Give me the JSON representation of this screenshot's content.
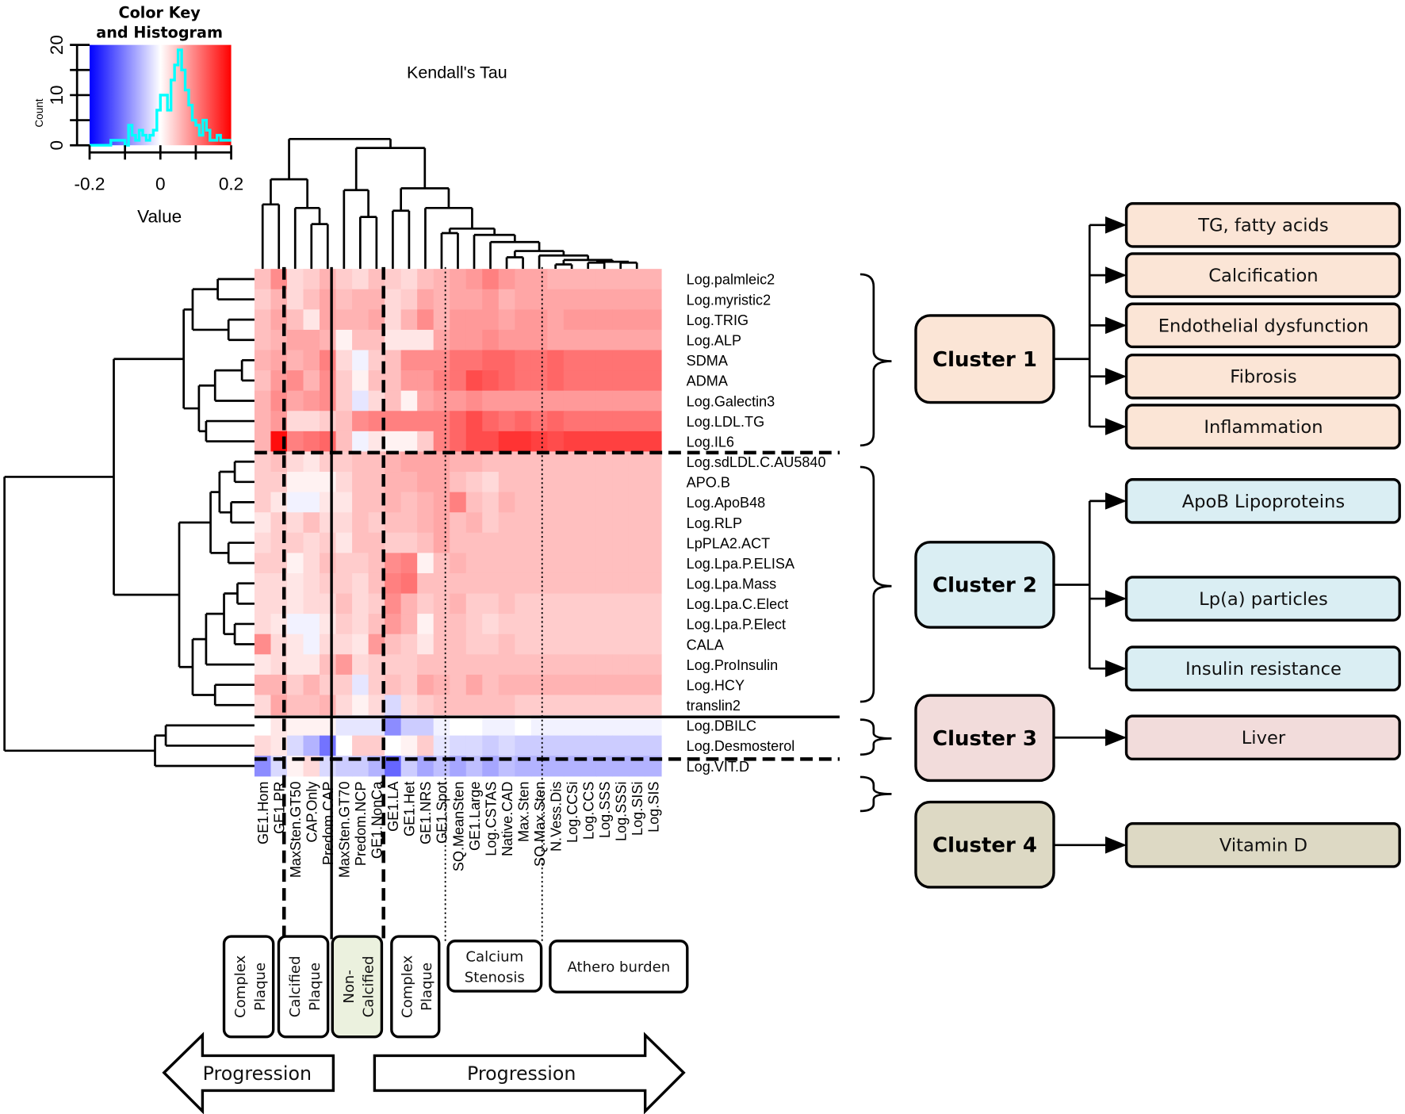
{
  "chart_data": {
    "type": "heatmap",
    "title": "Kendall's Tau",
    "color_scale": {
      "min": -0.2,
      "max": 0.2,
      "low_color": "#0000ff",
      "mid_color": "#ffffff",
      "high_color": "#ff0000"
    },
    "color_key": {
      "title_line1": "Color Key",
      "title_line2": "and Histogram",
      "xlabel": "Value",
      "ylabel": "Count",
      "x_ticks": [
        "-0.2",
        "0",
        "0.2"
      ],
      "y_ticks": [
        "0",
        "10",
        "20"
      ],
      "histogram_color": "#00ffff",
      "histogram_bin_start": -0.2,
      "histogram_bin_width": 0.01,
      "histogram_counts": [
        0,
        0,
        0,
        0,
        0,
        0,
        1,
        1,
        1,
        1,
        0,
        4,
        2,
        1,
        3,
        2,
        1,
        2,
        3,
        7,
        10,
        10,
        7,
        13,
        16,
        19,
        15,
        11,
        8,
        5,
        4,
        2,
        5,
        3,
        1,
        1,
        2,
        1,
        1,
        1
      ]
    },
    "columns": [
      "GE1.Hom",
      "GE1.PR",
      "MaxSten.GT50",
      "CAP.Only",
      "Predom.CAP",
      "MaxSten.GT70",
      "Predom.NCP",
      "GE1.NonCa",
      "GE1.LA",
      "GE1.Het",
      "GE1.NRS",
      "GE1.Spot",
      "SQ.MeanSten",
      "GE1.Large",
      "Log.CSTAS",
      "Native.CAD",
      "Max.Sten",
      "SQ.Max.Sten",
      "N.Vess.Dis",
      "Log.CCSi",
      "Log.CCS",
      "Log.SSS",
      "Log.SSSi",
      "Log.SISi",
      "Log.SIS"
    ],
    "rows": [
      "Log.palmleic2",
      "Log.myristic2",
      "Log.TRIG",
      "Log.ALP",
      "SDMA",
      "ADMA",
      "Log.Galectin3",
      "Log.LDL.TG",
      "Log.IL6",
      "Log.sdLDL.C.AU5840",
      "APO.B",
      "Log.ApoB48",
      "Log.RLP",
      "LpPLA2.ACT",
      "Log.Lpa.P.ELISA",
      "Log.Lpa.Mass",
      "Log.Lpa.C.Elect",
      "Log.Lpa.P.Elect",
      "CALA",
      "Log.ProInsulin",
      "Log.HCY",
      "translin2",
      "Log.DBILC",
      "Log.Desmosterol",
      "Log.VIT.D"
    ],
    "values": [
      [
        0.05,
        0.09,
        0.03,
        0.04,
        0.06,
        0.04,
        0.03,
        0.05,
        0.04,
        0.03,
        0.05,
        0.06,
        0.07,
        0.08,
        0.1,
        0.08,
        0.07,
        0.07,
        0.06,
        0.06,
        0.06,
        0.06,
        0.06,
        0.06,
        0.06
      ],
      [
        0.04,
        0.06,
        0.03,
        0.05,
        0.07,
        0.05,
        0.06,
        0.06,
        0.03,
        0.04,
        0.07,
        0.06,
        0.07,
        0.07,
        0.08,
        0.06,
        0.07,
        0.07,
        0.07,
        0.07,
        0.07,
        0.07,
        0.07,
        0.07,
        0.07
      ],
      [
        0.05,
        0.07,
        0.05,
        0.02,
        0.07,
        0.06,
        0.06,
        0.07,
        0.03,
        0.06,
        0.09,
        0.06,
        0.08,
        0.08,
        0.08,
        0.07,
        0.08,
        0.08,
        0.07,
        0.08,
        0.08,
        0.08,
        0.08,
        0.08,
        0.08
      ],
      [
        0.05,
        0.06,
        0.07,
        0.07,
        0.06,
        0.01,
        0.05,
        0.05,
        0.02,
        0.02,
        0.02,
        0.07,
        0.08,
        0.08,
        0.09,
        0.08,
        0.08,
        0.08,
        0.07,
        0.07,
        0.07,
        0.07,
        0.07,
        0.07,
        0.07
      ],
      [
        0.06,
        0.07,
        0.06,
        0.07,
        0.1,
        0.03,
        -0.01,
        0.04,
        0.05,
        0.09,
        0.09,
        0.09,
        0.11,
        0.11,
        0.12,
        0.12,
        0.11,
        0.11,
        0.12,
        0.11,
        0.11,
        0.11,
        0.11,
        0.11,
        0.11
      ],
      [
        0.05,
        0.08,
        0.09,
        0.06,
        0.09,
        0.04,
        0.01,
        0.05,
        0.05,
        0.08,
        0.08,
        0.1,
        0.11,
        0.14,
        0.13,
        0.12,
        0.11,
        0.11,
        0.12,
        0.11,
        0.11,
        0.11,
        0.11,
        0.11,
        0.11
      ],
      [
        0.06,
        0.09,
        0.07,
        0.08,
        0.09,
        0.04,
        -0.02,
        0.03,
        0.05,
        0.01,
        0.07,
        0.08,
        0.08,
        0.09,
        0.08,
        0.08,
        0.08,
        0.08,
        0.08,
        0.08,
        0.08,
        0.08,
        0.08,
        0.08,
        0.08
      ],
      [
        0.06,
        0.08,
        0.03,
        0.03,
        0.04,
        0.05,
        0.09,
        0.1,
        0.1,
        0.1,
        0.1,
        0.1,
        0.12,
        0.14,
        0.12,
        0.11,
        0.12,
        0.11,
        0.12,
        0.11,
        0.11,
        0.11,
        0.11,
        0.11,
        0.11
      ],
      [
        0.06,
        0.19,
        0.1,
        0.11,
        0.12,
        0.05,
        -0.01,
        0.02,
        0.01,
        0.01,
        0.04,
        0.1,
        0.12,
        0.14,
        0.14,
        0.16,
        0.16,
        0.15,
        0.14,
        0.15,
        0.15,
        0.15,
        0.15,
        0.15,
        0.15
      ],
      [
        0.04,
        0.05,
        0.03,
        0.02,
        0.04,
        0.04,
        0.05,
        0.05,
        0.06,
        0.07,
        0.07,
        0.07,
        0.06,
        0.06,
        0.05,
        0.05,
        0.05,
        0.05,
        0.05,
        0.05,
        0.05,
        0.05,
        0.05,
        0.05,
        0.05
      ],
      [
        0.04,
        0.04,
        0.01,
        0.01,
        0.01,
        0.03,
        0.05,
        0.05,
        0.06,
        0.06,
        0.07,
        0.07,
        0.05,
        0.04,
        0.03,
        0.05,
        0.05,
        0.05,
        0.05,
        0.05,
        0.05,
        0.05,
        0.05,
        0.05,
        0.05
      ],
      [
        0.04,
        0.02,
        -0.01,
        -0.01,
        0.02,
        0.02,
        0.05,
        0.05,
        0.06,
        0.05,
        0.06,
        0.07,
        0.1,
        0.05,
        0.04,
        0.06,
        0.05,
        0.05,
        0.05,
        0.05,
        0.05,
        0.05,
        0.05,
        0.05,
        0.05
      ],
      [
        0.02,
        0.04,
        0.03,
        0.05,
        0.03,
        0.03,
        0.05,
        0.04,
        0.05,
        0.05,
        0.06,
        0.07,
        0.05,
        0.06,
        0.04,
        0.05,
        0.05,
        0.05,
        0.05,
        0.05,
        0.05,
        0.05,
        0.05,
        0.05,
        0.05
      ],
      [
        0.03,
        0.04,
        0.04,
        0.03,
        0.04,
        0.02,
        0.05,
        0.05,
        0.04,
        0.04,
        0.05,
        0.07,
        0.05,
        0.05,
        0.05,
        0.05,
        0.05,
        0.05,
        0.05,
        0.05,
        0.05,
        0.05,
        0.05,
        0.05,
        0.05
      ],
      [
        0.04,
        0.04,
        0.01,
        0.03,
        0.05,
        0.04,
        0.04,
        0.05,
        0.09,
        0.1,
        0.01,
        0.05,
        0.06,
        0.05,
        0.05,
        0.05,
        0.05,
        0.05,
        0.05,
        0.05,
        0.05,
        0.05,
        0.05,
        0.05,
        0.05
      ],
      [
        0.03,
        0.03,
        0.02,
        0.03,
        0.04,
        0.04,
        0.03,
        0.05,
        0.1,
        0.11,
        0.05,
        0.05,
        0.05,
        0.05,
        0.05,
        0.05,
        0.05,
        0.05,
        0.05,
        0.05,
        0.05,
        0.05,
        0.05,
        0.05,
        0.05
      ],
      [
        0.03,
        0.03,
        0.02,
        0.03,
        0.03,
        0.05,
        0.03,
        0.04,
        0.09,
        0.06,
        0.04,
        0.05,
        0.06,
        0.04,
        0.04,
        0.05,
        0.04,
        0.04,
        0.04,
        0.04,
        0.04,
        0.04,
        0.04,
        0.04,
        0.04
      ],
      [
        0.03,
        0.02,
        -0.01,
        -0.01,
        0.02,
        0.04,
        0.03,
        0.05,
        0.08,
        0.06,
        0.01,
        0.05,
        0.05,
        0.04,
        0.03,
        0.04,
        0.04,
        0.04,
        0.04,
        0.04,
        0.04,
        0.04,
        0.04,
        0.04,
        0.04
      ],
      [
        0.09,
        0.03,
        0.02,
        -0.01,
        0.03,
        0.03,
        0.02,
        0.08,
        0.05,
        0.04,
        0.02,
        0.05,
        0.05,
        0.04,
        0.04,
        0.05,
        0.04,
        0.04,
        0.04,
        0.04,
        0.04,
        0.04,
        0.04,
        0.04,
        0.04
      ],
      [
        0.02,
        0.03,
        0.02,
        0.02,
        0.05,
        0.08,
        0.03,
        0.04,
        0.04,
        0.04,
        0.05,
        0.05,
        0.05,
        0.05,
        0.05,
        0.05,
        0.05,
        0.05,
        0.05,
        0.05,
        0.05,
        0.05,
        0.05,
        0.05,
        0.05
      ],
      [
        0.06,
        0.06,
        0.04,
        0.06,
        0.04,
        0.04,
        -0.02,
        0.04,
        0.05,
        0.04,
        0.07,
        0.06,
        0.05,
        0.07,
        0.05,
        0.06,
        0.06,
        0.06,
        0.06,
        0.06,
        0.06,
        0.06,
        0.06,
        0.06,
        0.06
      ],
      [
        0.03,
        0.07,
        0.05,
        0.05,
        0.06,
        0.03,
        0.01,
        0.03,
        -0.03,
        0.03,
        0.04,
        0.05,
        0.05,
        0.05,
        0.05,
        0.05,
        0.04,
        0.04,
        0.04,
        0.04,
        0.04,
        0.04,
        0.04,
        0.04,
        0.04
      ],
      [
        0.0,
        0.02,
        0.01,
        0.01,
        0.01,
        -0.02,
        -0.02,
        -0.02,
        -0.09,
        -0.04,
        -0.04,
        -0.01,
        0.0,
        0.0,
        -0.01,
        -0.01,
        0.0,
        -0.01,
        -0.01,
        -0.01,
        -0.01,
        -0.01,
        -0.01,
        -0.01,
        -0.01
      ],
      [
        0.03,
        0.02,
        -0.03,
        -0.06,
        -0.11,
        0.0,
        0.04,
        0.04,
        0.0,
        0.01,
        0.04,
        -0.02,
        -0.03,
        -0.03,
        -0.04,
        -0.03,
        -0.04,
        -0.04,
        -0.04,
        -0.04,
        -0.04,
        -0.04,
        -0.04,
        -0.04,
        -0.04
      ],
      [
        -0.09,
        -0.03,
        0.01,
        0.03,
        -0.03,
        -0.04,
        -0.04,
        -0.06,
        -0.12,
        -0.04,
        -0.07,
        -0.05,
        -0.07,
        -0.05,
        -0.07,
        -0.05,
        -0.06,
        -0.06,
        -0.06,
        -0.06,
        -0.06,
        -0.06,
        -0.06,
        -0.06,
        -0.06
      ]
    ]
  },
  "column_groups": [
    {
      "line1": "Complex",
      "line2": "Plaque",
      "fill": "#ffffff"
    },
    {
      "line1": "Calcified",
      "line2": "Plaque",
      "fill": "#ffffff"
    },
    {
      "line1": "Non-",
      "line2": "Calcified",
      "fill": "#ebf1de"
    },
    {
      "line1": "Complex",
      "line2": "Plaque",
      "fill": "#ffffff"
    },
    {
      "line1": "Calcium",
      "line2": "Stenosis",
      "fill": "#ffffff"
    },
    {
      "line1": "Athero burden",
      "line2": "",
      "fill": "#ffffff"
    }
  ],
  "arrows": {
    "left": "Progression",
    "right": "Progression"
  },
  "clusters": [
    {
      "label": "Cluster 1",
      "fill": "#fbe5d6",
      "targets": [
        "TG, fatty acids",
        "Calcification",
        "Endothelial dysfunction",
        "Fibrosis",
        "Inflammation"
      ]
    },
    {
      "label": "Cluster 2",
      "fill": "#daeef3",
      "targets": [
        "ApoB Lipoproteins",
        "Lp(a) particles",
        "Insulin resistance"
      ]
    },
    {
      "label": "Cluster 3",
      "fill": "#f2dcdb",
      "targets": [
        "Liver"
      ]
    },
    {
      "label": "Cluster 4",
      "fill": "#ddd9c4",
      "targets": [
        "Vitamin D"
      ]
    }
  ]
}
